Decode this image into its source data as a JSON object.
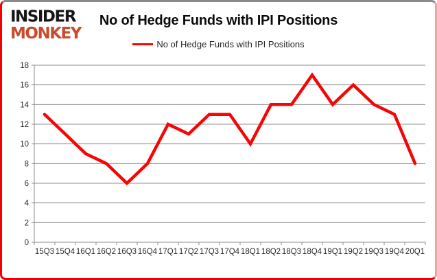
{
  "logo": {
    "line1": "INSIDER",
    "line2": "MONKEY",
    "color_black": "#161616",
    "color_red": "#c94b2b"
  },
  "title": "No of Hedge Funds with IPI Positions",
  "legend": {
    "label": "No of Hedge Funds with IPI Positions",
    "swatch_color": "#f70505"
  },
  "chart_data": {
    "type": "line",
    "title": "No of Hedge Funds with IPI Positions",
    "categories": [
      "15Q3",
      "15Q4",
      "16Q1",
      "16Q2",
      "16Q3",
      "16Q4",
      "17Q1",
      "17Q2",
      "17Q3",
      "17Q4",
      "18Q1",
      "18Q2",
      "18Q3",
      "18Q4",
      "19Q1",
      "19Q2",
      "19Q3",
      "19Q4",
      "20Q1"
    ],
    "series": [
      {
        "name": "No of Hedge Funds with IPI Positions",
        "values": [
          13,
          11,
          9,
          8,
          6,
          8,
          12,
          11,
          13,
          13,
          10,
          14,
          14,
          17,
          14,
          16,
          14,
          13,
          8
        ],
        "color": "#f70505"
      }
    ],
    "xlabel": "",
    "ylabel": "",
    "ylim": [
      0,
      18
    ],
    "yticks": [
      0,
      2,
      4,
      6,
      8,
      10,
      12,
      14,
      16,
      18
    ],
    "grid": true,
    "legend_position": "top"
  },
  "colors": {
    "grid": "#8e8e8e",
    "axis": "#8e8e8e",
    "tick_text": "#2b2b2b",
    "title_text": "#0a0a0a",
    "background": "#ffffff"
  }
}
